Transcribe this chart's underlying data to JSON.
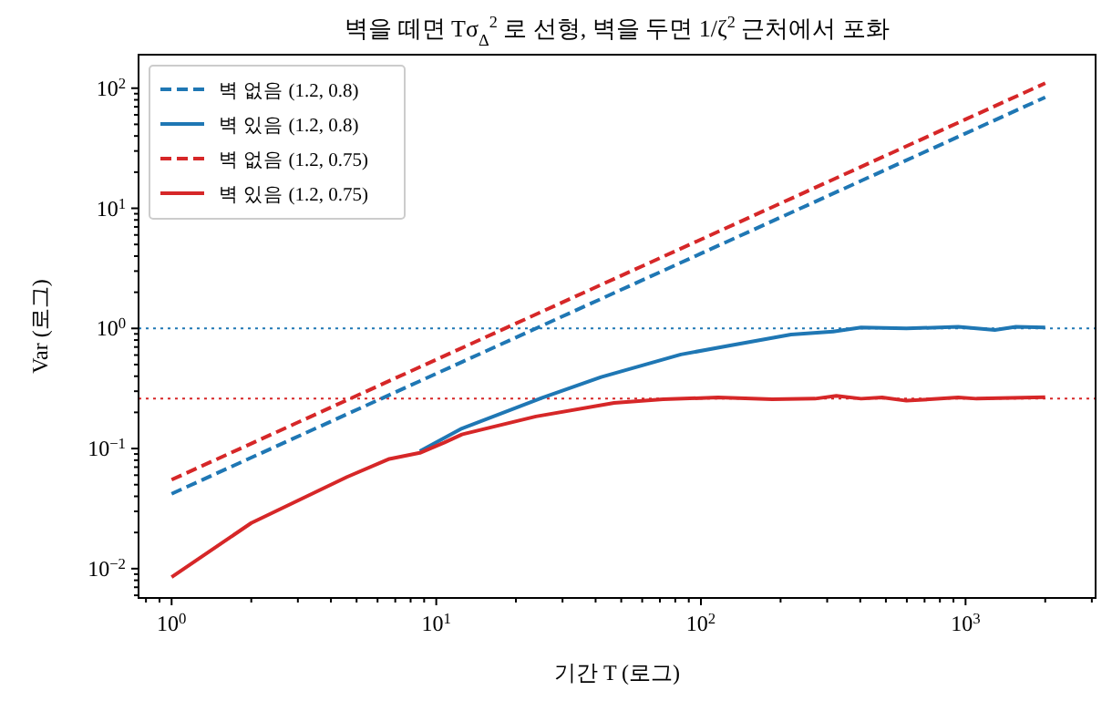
{
  "chart_data": {
    "type": "line",
    "title": "벽을 떼면 Tσ$_{Δ}$$^{2}$ 로 선형, 벽을 두면 1/ζ$^{2}$ 근처에서 포화",
    "xlabel": "기간 T (로그)",
    "ylabel": "Var (로그)",
    "log": "xy",
    "grid": false,
    "legend": "top left",
    "marker": "none",
    "xlim": [
      0.75,
      3100
    ],
    "ylim": [
      0.0057,
      190
    ],
    "xticks": [
      {
        "value": 0.8,
        "label": null
      },
      {
        "value": 0.9,
        "label": null
      },
      {
        "value": 1,
        "label": "10$^{0}$"
      },
      {
        "value": 2,
        "label": null
      },
      {
        "value": 3,
        "label": null
      },
      {
        "value": 4,
        "label": null
      },
      {
        "value": 5,
        "label": null
      },
      {
        "value": 6,
        "label": null
      },
      {
        "value": 7,
        "label": null
      },
      {
        "value": 8,
        "label": null
      },
      {
        "value": 9,
        "label": null
      },
      {
        "value": 10,
        "label": "10$^{1}$"
      },
      {
        "value": 20,
        "label": null
      },
      {
        "value": 30,
        "label": null
      },
      {
        "value": 40,
        "label": null
      },
      {
        "value": 50,
        "label": null
      },
      {
        "value": 60,
        "label": null
      },
      {
        "value": 70,
        "label": null
      },
      {
        "value": 80,
        "label": null
      },
      {
        "value": 90,
        "label": null
      },
      {
        "value": 100,
        "label": "10$^{2}$"
      },
      {
        "value": 200,
        "label": null
      },
      {
        "value": 300,
        "label": null
      },
      {
        "value": 400,
        "label": null
      },
      {
        "value": 500,
        "label": null
      },
      {
        "value": 600,
        "label": null
      },
      {
        "value": 700,
        "label": null
      },
      {
        "value": 800,
        "label": null
      },
      {
        "value": 900,
        "label": null
      },
      {
        "value": 1000,
        "label": "10$^{3}$"
      },
      {
        "value": 2000,
        "label": null
      },
      {
        "value": 3000,
        "label": null
      }
    ],
    "yticks": [
      {
        "value": 0.006,
        "label": null
      },
      {
        "value": 0.007,
        "label": null
      },
      {
        "value": 0.008,
        "label": null
      },
      {
        "value": 0.009,
        "label": null
      },
      {
        "value": 0.01,
        "label": "10$^{−2}$"
      },
      {
        "value": 0.02,
        "label": null
      },
      {
        "value": 0.03,
        "label": null
      },
      {
        "value": 0.04,
        "label": null
      },
      {
        "value": 0.05,
        "label": null
      },
      {
        "value": 0.06,
        "label": null
      },
      {
        "value": 0.07,
        "label": null
      },
      {
        "value": 0.08,
        "label": null
      },
      {
        "value": 0.09,
        "label": null
      },
      {
        "value": 0.1,
        "label": "10$^{−1}$"
      },
      {
        "value": 0.2,
        "label": null
      },
      {
        "value": 0.3,
        "label": null
      },
      {
        "value": 0.4,
        "label": null
      },
      {
        "value": 0.5,
        "label": null
      },
      {
        "value": 0.6,
        "label": null
      },
      {
        "value": 0.7,
        "label": null
      },
      {
        "value": 0.8,
        "label": null
      },
      {
        "value": 0.9,
        "label": null
      },
      {
        "value": 1,
        "label": "10$^{0}$"
      },
      {
        "value": 2,
        "label": null
      },
      {
        "value": 3,
        "label": null
      },
      {
        "value": 4,
        "label": null
      },
      {
        "value": 5,
        "label": null
      },
      {
        "value": 6,
        "label": null
      },
      {
        "value": 7,
        "label": null
      },
      {
        "value": 8,
        "label": null
      },
      {
        "value": 9,
        "label": null
      },
      {
        "value": 10,
        "label": "10$^{1}$"
      },
      {
        "value": 20,
        "label": null
      },
      {
        "value": 30,
        "label": null
      },
      {
        "value": 40,
        "label": null
      },
      {
        "value": 50,
        "label": null
      },
      {
        "value": 60,
        "label": null
      },
      {
        "value": 70,
        "label": null
      },
      {
        "value": 80,
        "label": null
      },
      {
        "value": 90,
        "label": null
      },
      {
        "value": 100,
        "label": "10$^{2}$"
      }
    ],
    "ref_lines": [
      {
        "axis": "y",
        "value": 1,
        "color": "#1f77b4",
        "line_style": "dotted"
      },
      {
        "axis": "y",
        "value": 0.26,
        "color": "#d62728",
        "line_style": "dotted"
      }
    ],
    "series": [
      {
        "name": "벽 없음 (1.2, 0.8)",
        "color": "#1f77b4",
        "line_style": "dashed",
        "x": [
          1,
          10,
          100,
          1000,
          2000
        ],
        "values": [
          0.042,
          0.42,
          4.2,
          42,
          84
        ]
      },
      {
        "name": "벽 있음 (1.2, 0.8)",
        "color": "#1f77b4",
        "line_style": "solid",
        "x": [
          8.67,
          12.5,
          25,
          42,
          84,
          129,
          219,
          316,
          403,
          598,
          938,
          1290,
          1550,
          2000
        ],
        "values": [
          0.095,
          0.147,
          0.263,
          0.394,
          0.607,
          0.72,
          0.89,
          0.94,
          1.02,
          1.0,
          1.03,
          0.97,
          1.03,
          1.02
        ]
      },
      {
        "name": "벽 없음 (1.2, 0.75)",
        "color": "#d62728",
        "line_style": "dashed",
        "x": [
          1,
          10,
          100,
          1000,
          2000
        ],
        "values": [
          0.055,
          0.55,
          5.5,
          55,
          110
        ]
      },
      {
        "name": "벽 있음 (1.2, 0.75)",
        "color": "#d62728",
        "line_style": "solid",
        "x": [
          1,
          2,
          4.6,
          6.65,
          8.67,
          10.7,
          12.5,
          23.8,
          47,
          72,
          116,
          186,
          270,
          325,
          403,
          484,
          598,
          938,
          1100,
          2000
        ],
        "values": [
          0.0085,
          0.024,
          0.058,
          0.082,
          0.092,
          0.112,
          0.131,
          0.185,
          0.24,
          0.257,
          0.266,
          0.257,
          0.26,
          0.275,
          0.26,
          0.266,
          0.25,
          0.266,
          0.26,
          0.268
        ]
      }
    ]
  }
}
